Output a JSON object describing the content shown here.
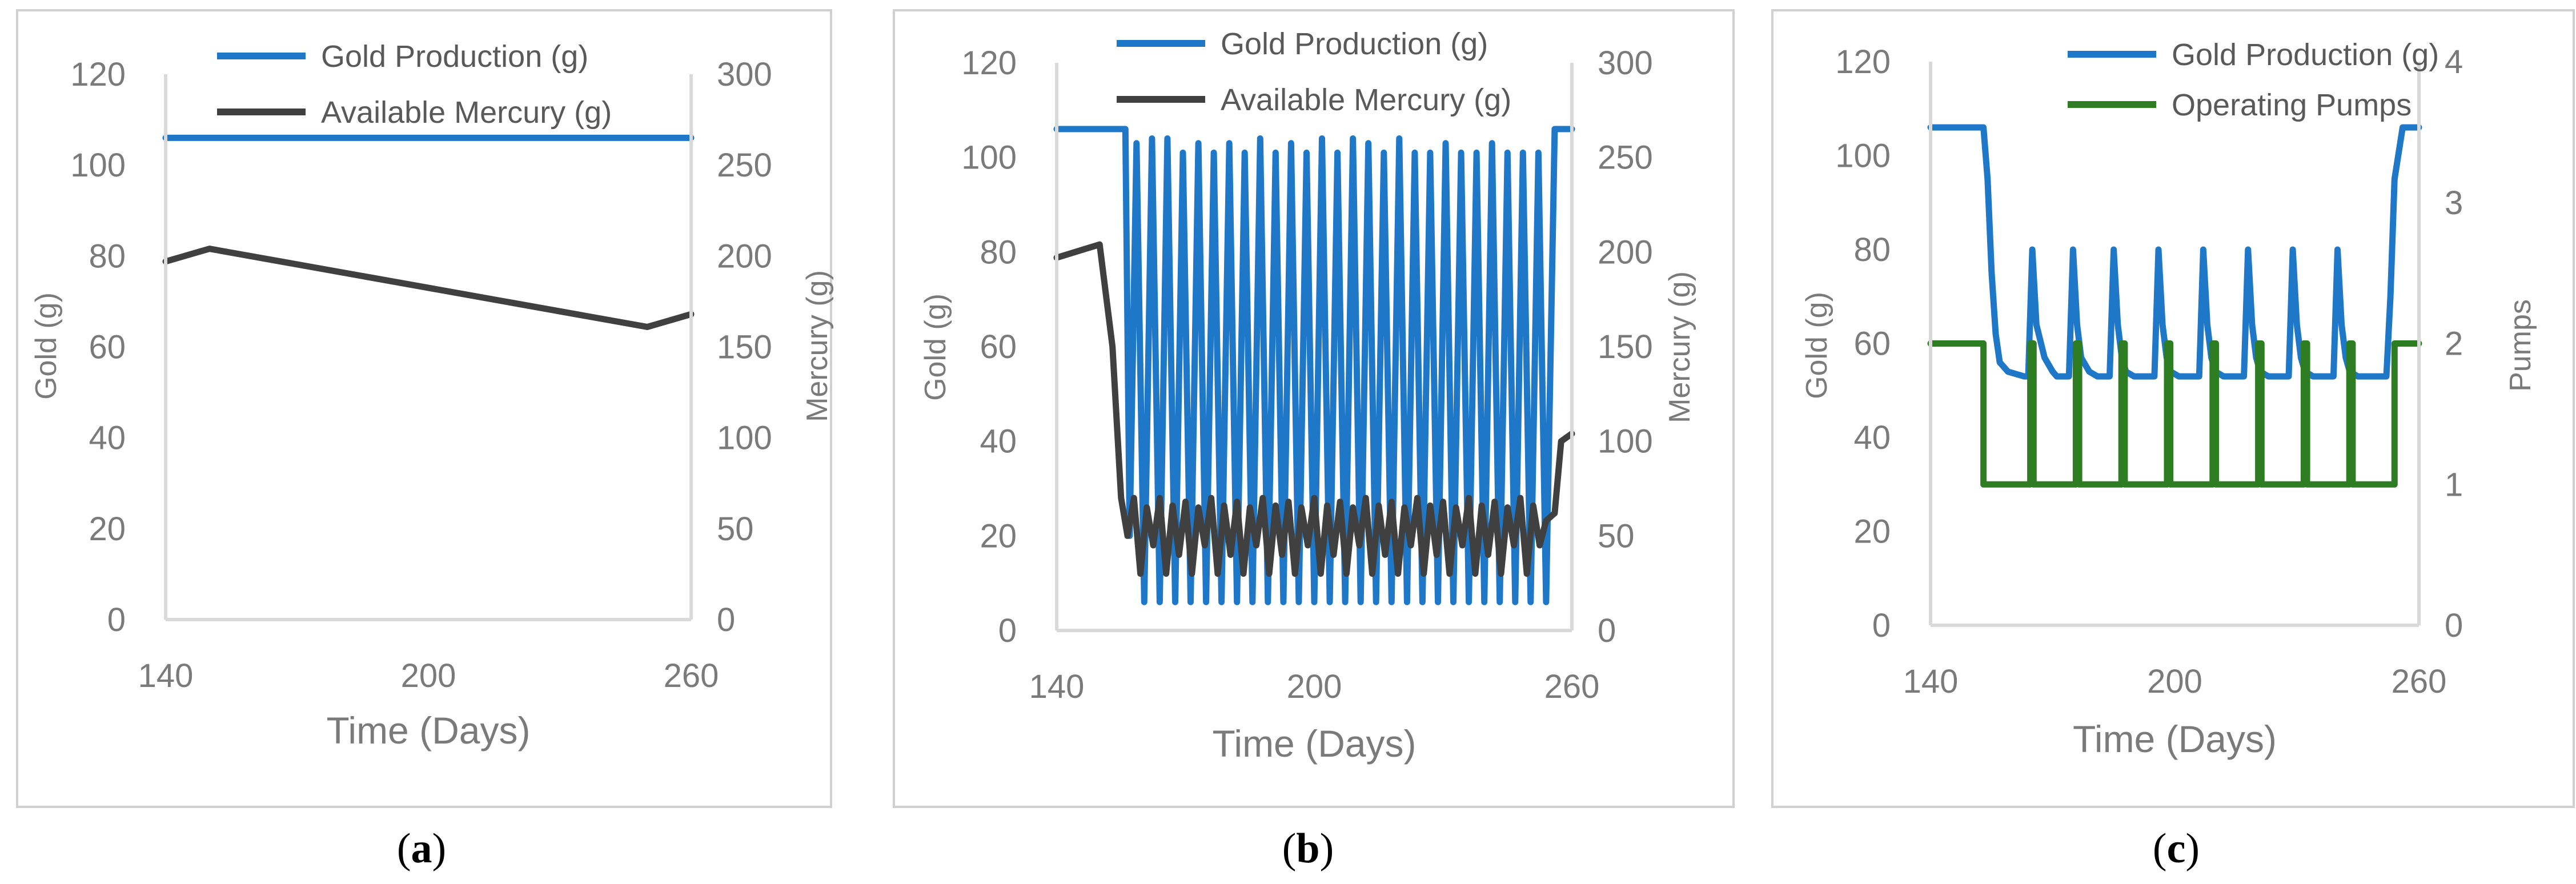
{
  "colors": {
    "gold": "#1f77c8",
    "mercury": "#404040",
    "pumps": "#2e7d23",
    "axis": "#d9d9d9",
    "text": "#7a7a7a"
  },
  "chart_data": [
    {
      "type": "line",
      "caption_open": "(",
      "caption_letter": "a",
      "caption_close": ")",
      "xlabel": "Time (Days)",
      "ylabel_left": "Gold (g)",
      "ylabel_right": "Mercury (g)",
      "xlim": [
        140,
        260
      ],
      "xticks": [
        "140",
        "200",
        "260"
      ],
      "ylim_left": [
        0,
        120
      ],
      "yticks_left": [
        "0",
        "20",
        "40",
        "60",
        "80",
        "100",
        "120"
      ],
      "ylim_right": [
        0,
        300
      ],
      "yticks_right": [
        "0",
        "50",
        "100",
        "150",
        "200",
        "250",
        "300"
      ],
      "series": [
        {
          "name": "Gold Production (g)",
          "axis": "left",
          "color": "gold",
          "x": [
            140,
            260
          ],
          "y": [
            106,
            106
          ]
        },
        {
          "name": "Available Mercury (g)",
          "axis": "right",
          "color": "mercury",
          "x": [
            140,
            150,
            250,
            260
          ],
          "y": [
            197,
            204,
            161,
            168
          ]
        }
      ]
    },
    {
      "type": "line",
      "caption_open": "(",
      "caption_letter": "b",
      "caption_close": ")",
      "xlabel": "Time (Days)",
      "ylabel_left": "Gold (g)",
      "ylabel_right": "Mercury (g)",
      "xlim": [
        140,
        260
      ],
      "xticks": [
        "140",
        "200",
        "260"
      ],
      "ylim_left": [
        0,
        120
      ],
      "yticks_left": [
        "0",
        "20",
        "40",
        "60",
        "80",
        "100",
        "120"
      ],
      "ylim_right": [
        0,
        300
      ],
      "yticks_right": [
        "0",
        "50",
        "100",
        "150",
        "200",
        "250",
        "300"
      ],
      "series": [
        {
          "name": "Gold Production (g)",
          "axis": "left",
          "color": "gold",
          "x": [
            140,
            156,
            157,
            158.6,
            160.4,
            162.2,
            164,
            165.8,
            167.6,
            169.4,
            171.2,
            173,
            174.8,
            176.6,
            178.4,
            180.2,
            182,
            183.8,
            185.6,
            187.4,
            189.2,
            191,
            192.8,
            194.6,
            196.4,
            198.2,
            200,
            201.8,
            203.6,
            205.4,
            207.2,
            209,
            210.8,
            212.6,
            214.4,
            216.2,
            218,
            219.8,
            221.6,
            223.4,
            225.2,
            227,
            228.8,
            230.6,
            232.4,
            234.2,
            236,
            237.8,
            239.6,
            241.4,
            243.2,
            245,
            246.8,
            248.6,
            250.4,
            252.2,
            254,
            256,
            260
          ],
          "y": [
            106,
            106,
            20,
            103,
            6,
            104,
            6,
            104,
            6,
            101,
            6,
            103,
            6,
            101,
            6,
            103,
            6,
            101,
            6,
            104,
            6,
            101,
            6,
            103,
            6,
            101,
            6,
            104,
            6,
            101,
            6,
            104,
            6,
            103,
            6,
            101,
            6,
            104,
            6,
            101,
            6,
            101,
            6,
            103,
            6,
            101,
            6,
            101,
            6,
            103,
            6,
            101,
            6,
            101,
            6,
            101,
            6,
            106,
            106
          ]
        },
        {
          "name": "Available Mercury (g)",
          "axis": "right",
          "color": "mercury",
          "x": [
            140,
            150,
            153,
            155,
            156.5,
            158,
            159.5,
            161,
            162.5,
            164,
            165.5,
            167,
            168.5,
            170,
            171.5,
            173,
            174.5,
            176,
            177.5,
            179,
            180.5,
            182,
            183.5,
            185,
            186.5,
            188,
            189.5,
            191,
            192.5,
            194,
            195.5,
            197,
            198.5,
            200,
            201.5,
            203,
            204.5,
            206,
            207.5,
            209,
            210.5,
            212,
            213.5,
            215,
            216.5,
            218,
            219.5,
            221,
            222.5,
            224,
            225.5,
            227,
            228.5,
            230,
            231.5,
            233,
            234.5,
            236,
            237.5,
            239,
            240.5,
            242,
            243.5,
            245,
            246.5,
            248,
            249.5,
            251,
            252.5,
            254,
            255,
            256,
            257.5,
            260
          ],
          "y": [
            197,
            204,
            150,
            70,
            50,
            70,
            30,
            65,
            45,
            70,
            30,
            66,
            40,
            68,
            30,
            65,
            45,
            70,
            30,
            66,
            40,
            68,
            30,
            65,
            45,
            70,
            30,
            66,
            40,
            68,
            30,
            65,
            45,
            70,
            30,
            66,
            40,
            68,
            30,
            65,
            45,
            70,
            30,
            66,
            40,
            68,
            30,
            65,
            45,
            70,
            30,
            66,
            40,
            68,
            30,
            65,
            45,
            70,
            30,
            66,
            40,
            68,
            30,
            65,
            45,
            70,
            30,
            66,
            45,
            58,
            60,
            62,
            100,
            104
          ]
        }
      ]
    },
    {
      "type": "line",
      "caption_open": "(",
      "caption_letter": "c",
      "caption_close": ")",
      "xlabel": "Time (Days)",
      "ylabel_left": "Gold (g)",
      "ylabel_right": "Pumps",
      "xlim": [
        140,
        260
      ],
      "xticks": [
        "140",
        "200",
        "260"
      ],
      "ylim_left": [
        0,
        120
      ],
      "yticks_left": [
        "0",
        "20",
        "40",
        "60",
        "80",
        "100",
        "120"
      ],
      "ylim_right": [
        0,
        4
      ],
      "yticks_right": [
        "0",
        "1",
        "2",
        "3",
        "4"
      ],
      "series": [
        {
          "name": "Gold Production (g)",
          "axis": "left",
          "color": "gold",
          "x": [
            140,
            153,
            154,
            155,
            156,
            157,
            159,
            163,
            164,
            165,
            166,
            168,
            170,
            171,
            173,
            174,
            175,
            176,
            177,
            179,
            181,
            182,
            184,
            185,
            186,
            187,
            188,
            190,
            192,
            193,
            195,
            196,
            197,
            198,
            199,
            201,
            203,
            204,
            206,
            207,
            208,
            209,
            210,
            212,
            214,
            215,
            217,
            218,
            219,
            220,
            221,
            223,
            225,
            226,
            228,
            229,
            230,
            231,
            232,
            234,
            236,
            237,
            239,
            240,
            241,
            242,
            243,
            245,
            247,
            248,
            249,
            250,
            251,
            252,
            253,
            254,
            256,
            260
          ],
          "y": [
            106,
            106,
            95,
            75,
            62,
            56,
            54,
            53,
            53,
            80,
            64,
            57,
            54,
            53,
            53,
            53,
            80,
            64,
            57,
            54,
            53,
            53,
            53,
            80,
            64,
            57,
            54,
            53,
            53,
            53,
            53,
            80,
            64,
            57,
            54,
            53,
            53,
            53,
            53,
            80,
            64,
            57,
            54,
            53,
            53,
            53,
            53,
            80,
            64,
            57,
            54,
            53,
            53,
            53,
            53,
            80,
            64,
            57,
            54,
            53,
            53,
            53,
            53,
            80,
            64,
            57,
            54,
            53,
            53,
            53,
            53,
            53,
            53,
            53,
            70,
            95,
            106,
            106
          ]
        },
        {
          "name": "Operating Pumps",
          "axis": "right",
          "color": "pumps",
          "x": [
            140,
            153,
            153,
            164.5,
            164.5,
            165.3,
            165.3,
            175.7,
            175.7,
            176.5,
            176.5,
            186.9,
            186.9,
            187.7,
            187.7,
            198.1,
            198.1,
            198.9,
            198.9,
            209.3,
            209.3,
            210.1,
            210.1,
            220.5,
            220.5,
            221.3,
            221.3,
            231.7,
            231.7,
            232.5,
            232.5,
            242.9,
            242.9,
            243.7,
            243.7,
            254,
            254,
            260
          ],
          "y": [
            2,
            2,
            1,
            1,
            2,
            2,
            1,
            1,
            2,
            2,
            1,
            1,
            2,
            2,
            1,
            1,
            2,
            2,
            1,
            1,
            2,
            2,
            1,
            1,
            2,
            2,
            1,
            1,
            2,
            2,
            1,
            1,
            2,
            2,
            1,
            1,
            2,
            2
          ]
        }
      ]
    }
  ]
}
